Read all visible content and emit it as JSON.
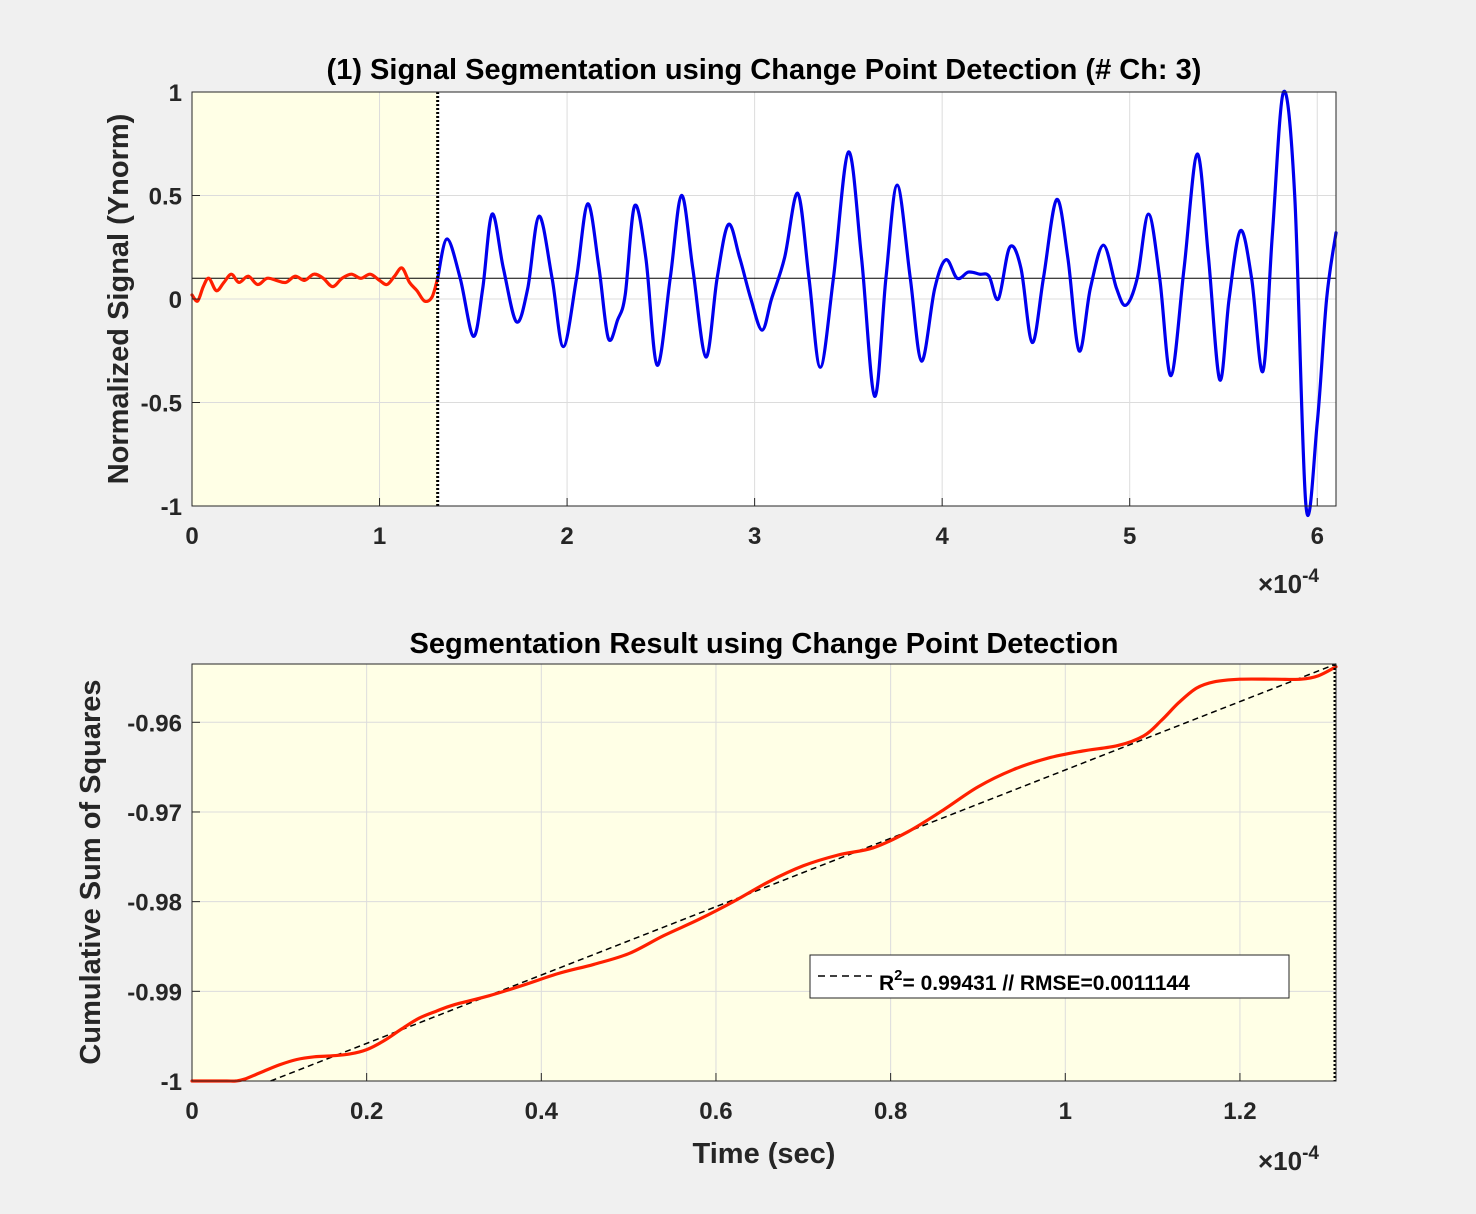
{
  "chart_data": [
    {
      "type": "line",
      "title": "(1) Signal Segmentation using Change Point Detection (# Ch: 3)",
      "xlabel": "",
      "ylabel": "Normalized Signal (Ynorm)",
      "x_exponent": "-4",
      "xlim": [
        0,
        6.1
      ],
      "ylim": [
        -1,
        1
      ],
      "xticks": [
        "0",
        "1",
        "2",
        "3",
        "4",
        "5",
        "6"
      ],
      "yticks": [
        "-1",
        "-0.5",
        "0",
        "0.5",
        "1"
      ],
      "grid": true,
      "baseline_y": 0.1,
      "highlight_region": [
        0,
        1.31
      ],
      "highlight_color": "#ffffe6",
      "change_point_x": 1.31,
      "series": [
        {
          "color": "#ff2000",
          "x": [
            0.0,
            0.03,
            0.06,
            0.09,
            0.13,
            0.17,
            0.21,
            0.25,
            0.3,
            0.35,
            0.4,
            0.45,
            0.5,
            0.55,
            0.6,
            0.65,
            0.7,
            0.75,
            0.8,
            0.85,
            0.9,
            0.95,
            1.0,
            1.04,
            1.08,
            1.12,
            1.16,
            1.2,
            1.24,
            1.28,
            1.31
          ],
          "y": [
            0.02,
            -0.01,
            0.06,
            0.1,
            0.04,
            0.08,
            0.12,
            0.08,
            0.11,
            0.07,
            0.1,
            0.09,
            0.08,
            0.11,
            0.09,
            0.12,
            0.1,
            0.06,
            0.1,
            0.12,
            0.1,
            0.12,
            0.09,
            0.07,
            0.11,
            0.15,
            0.08,
            0.04,
            -0.01,
            0.01,
            0.1
          ]
        },
        {
          "color": "#0000ee",
          "x": [
            1.31,
            1.36,
            1.43,
            1.5,
            1.55,
            1.6,
            1.66,
            1.73,
            1.79,
            1.85,
            1.92,
            1.98,
            2.05,
            2.11,
            2.17,
            2.22,
            2.27,
            2.31,
            2.36,
            2.42,
            2.48,
            2.55,
            2.61,
            2.67,
            2.74,
            2.8,
            2.86,
            2.92,
            2.98,
            3.04,
            3.09,
            3.16,
            3.23,
            3.29,
            3.35,
            3.42,
            3.5,
            3.57,
            3.64,
            3.7,
            3.76,
            3.83,
            3.89,
            3.96,
            4.02,
            4.08,
            4.14,
            4.2,
            4.25,
            4.3,
            4.36,
            4.42,
            4.48,
            4.54,
            4.61,
            4.67,
            4.73,
            4.79,
            4.86,
            4.93,
            4.98,
            5.04,
            5.1,
            5.16,
            5.22,
            5.29,
            5.36,
            5.42,
            5.48,
            5.53,
            5.59,
            5.65,
            5.71,
            5.76,
            5.82,
            5.88,
            5.94,
            6.0,
            6.05,
            6.1
          ],
          "y": [
            0.1,
            0.29,
            0.1,
            -0.18,
            0.05,
            0.41,
            0.15,
            -0.11,
            0.05,
            0.4,
            0.1,
            -0.23,
            0.1,
            0.46,
            0.15,
            -0.19,
            -0.1,
            0.02,
            0.45,
            0.2,
            -0.32,
            0.1,
            0.5,
            0.15,
            -0.28,
            0.1,
            0.36,
            0.2,
            0.0,
            -0.15,
            0.0,
            0.2,
            0.51,
            0.1,
            -0.33,
            0.1,
            0.71,
            0.2,
            -0.47,
            0.1,
            0.55,
            0.1,
            -0.3,
            0.05,
            0.19,
            0.1,
            0.13,
            0.12,
            0.11,
            0.0,
            0.25,
            0.15,
            -0.21,
            0.1,
            0.48,
            0.2,
            -0.25,
            0.05,
            0.26,
            0.05,
            -0.03,
            0.1,
            0.41,
            0.1,
            -0.37,
            0.15,
            0.7,
            0.2,
            -0.39,
            0.0,
            0.33,
            0.1,
            -0.35,
            0.3,
            1.0,
            0.5,
            -1.0,
            -0.6,
            0.0,
            0.32
          ]
        }
      ]
    },
    {
      "type": "line",
      "title": "Segmentation Result using Change Point Detection",
      "xlabel": "Time (sec)",
      "ylabel": "Cumulative Sum of Squares",
      "x_exponent": "-4",
      "xlim": [
        0,
        1.31
      ],
      "ylim": [
        -1,
        -0.9535
      ],
      "xticks": [
        "0",
        "0.2",
        "0.4",
        "0.6",
        "0.8",
        "1",
        "1.2"
      ],
      "yticks": [
        "-1",
        "-0.99",
        "-0.98",
        "-0.97",
        "-0.96"
      ],
      "grid": true,
      "highlight_color": "#ffffe6",
      "change_point_x": 1.31,
      "legend": {
        "position": "lower-right",
        "label_prefix": "R",
        "label_sup": "2",
        "label_suffix": "= 0.99431 // RMSE=0.0011144"
      },
      "series": [
        {
          "color": "#ff2000",
          "x": [
            0,
            0.02,
            0.04,
            0.05,
            0.06,
            0.08,
            0.1,
            0.12,
            0.14,
            0.16,
            0.18,
            0.2,
            0.22,
            0.24,
            0.26,
            0.28,
            0.3,
            0.34,
            0.38,
            0.42,
            0.46,
            0.5,
            0.54,
            0.58,
            0.62,
            0.66,
            0.7,
            0.74,
            0.78,
            0.82,
            0.86,
            0.9,
            0.94,
            0.98,
            1.02,
            1.06,
            1.09,
            1.11,
            1.13,
            1.15,
            1.17,
            1.2,
            1.24,
            1.27,
            1.29,
            1.31
          ],
          "y": [
            -1.0,
            -1.0,
            -1.0,
            -1.0,
            -0.9998,
            -0.999,
            -0.9982,
            -0.9976,
            -0.9973,
            -0.9972,
            -0.997,
            -0.9965,
            -0.9955,
            -0.9942,
            -0.993,
            -0.9922,
            -0.9915,
            -0.9905,
            -0.9893,
            -0.988,
            -0.987,
            -0.9858,
            -0.9838,
            -0.982,
            -0.98,
            -0.9778,
            -0.976,
            -0.9748,
            -0.974,
            -0.9722,
            -0.9698,
            -0.9672,
            -0.9653,
            -0.964,
            -0.9632,
            -0.9626,
            -0.9615,
            -0.9598,
            -0.9578,
            -0.9562,
            -0.9555,
            -0.9552,
            -0.9552,
            -0.9552,
            -0.9548,
            -0.9538
          ]
        }
      ],
      "fit_line": {
        "color": "#000000",
        "x": [
          0.09,
          1.31
        ],
        "y": [
          -1.0,
          -0.9535
        ]
      }
    }
  ]
}
